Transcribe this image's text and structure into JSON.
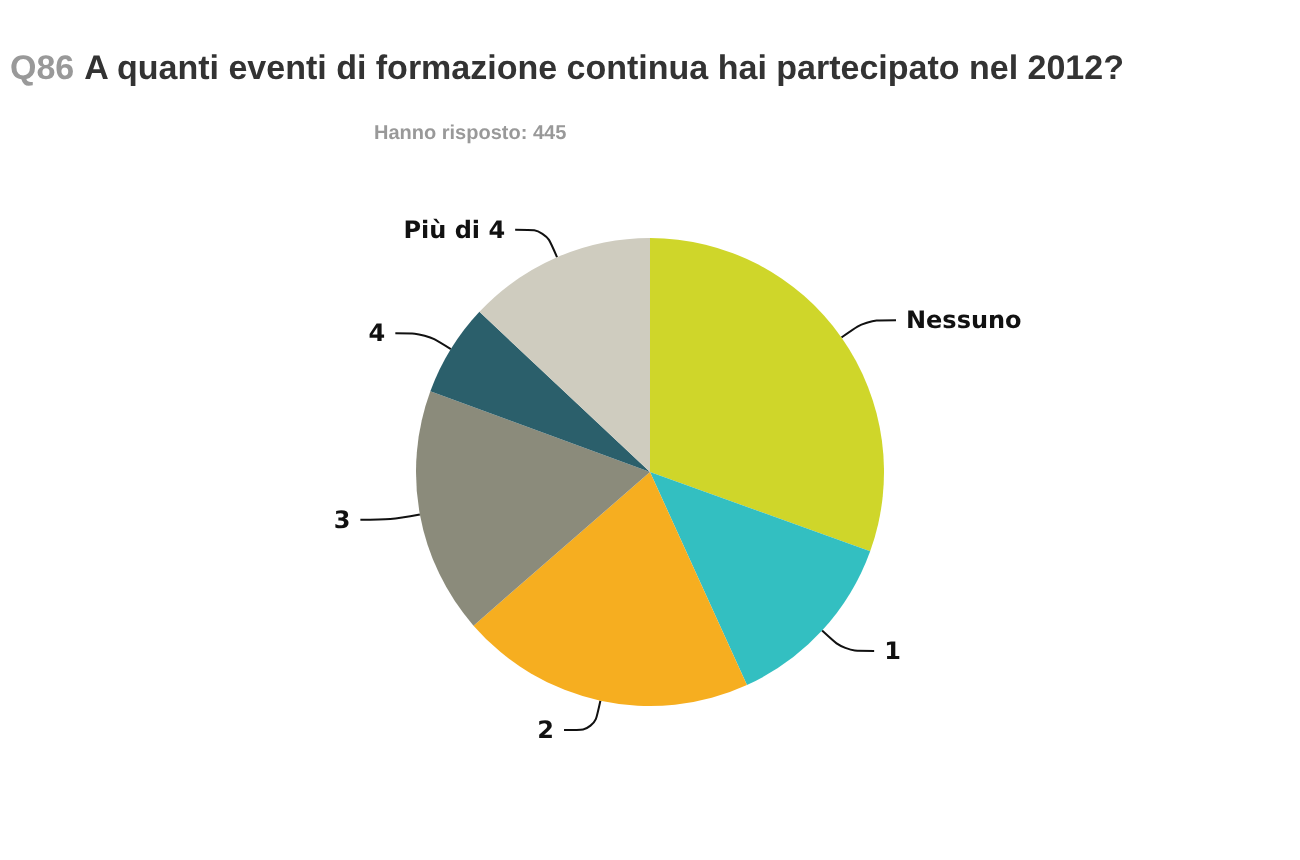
{
  "chart_data": {
    "type": "pie",
    "title": "Q86 A quanti eventi di formazione continua hai partecipato nel 2012?",
    "subtitle": "Hanno risposto: 445",
    "categories": [
      "Nessuno",
      "1",
      "2",
      "3",
      "4",
      "Più di 4"
    ],
    "values": [
      30.5,
      12.7,
      20.4,
      17.0,
      6.4,
      13.0
    ],
    "colors": [
      "#cfd62a",
      "#33bfc1",
      "#f6ae20",
      "#8b8b7b",
      "#2b5f6b",
      "#cfccbf"
    ],
    "legend": false
  }
}
